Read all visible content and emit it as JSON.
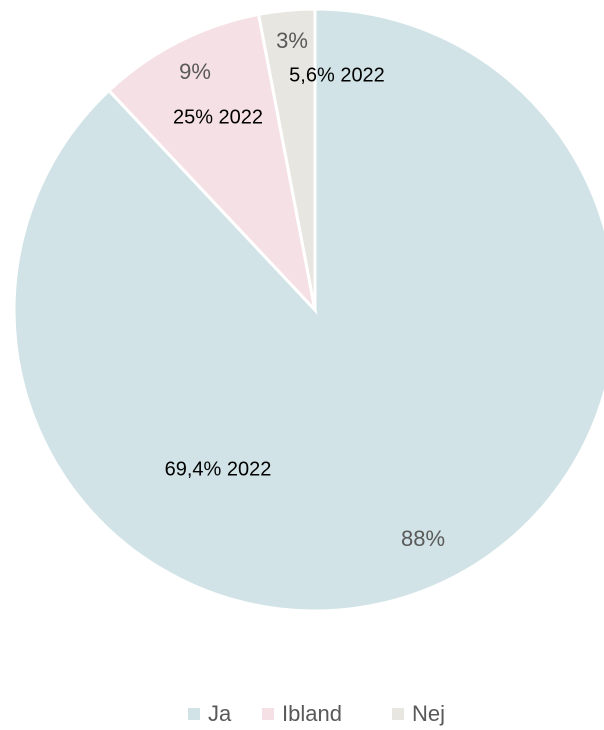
{
  "chart_data": {
    "type": "pie",
    "categories": [
      "Ja",
      "Ibland",
      "Nej"
    ],
    "values": [
      88,
      9,
      3
    ],
    "value_labels": [
      "88%",
      "9%",
      "3%"
    ],
    "colors": [
      "#d1e3e6",
      "#f5e1e5",
      "#e8e6e1"
    ],
    "annotations": [
      "69,4% 2022",
      "25% 2022",
      "5,6% 2022"
    ],
    "legend": "bottom"
  }
}
